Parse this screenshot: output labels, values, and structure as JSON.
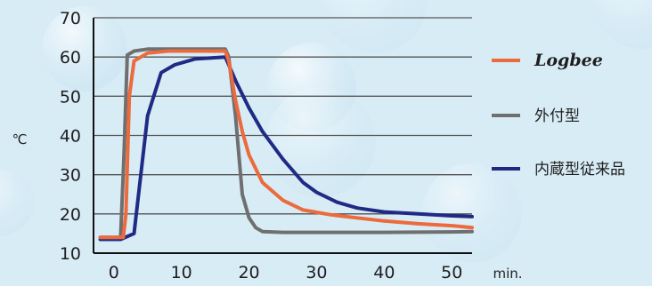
{
  "chart_data": {
    "type": "line",
    "ylabel": "℃",
    "xlabel": "min.",
    "xlim": [
      -3,
      53
    ],
    "ylim": [
      10,
      70
    ],
    "x_ticks": [
      "0",
      "10",
      "20",
      "30",
      "40",
      "50"
    ],
    "y_ticks": [
      "10",
      "20",
      "30",
      "40",
      "50",
      "60",
      "70"
    ],
    "grid": true,
    "legend_position": "right",
    "series": [
      {
        "name": "Logbee",
        "color": "#ec6a3c",
        "x": [
          -2,
          1.4,
          1.8,
          2.3,
          3,
          5,
          8,
          12,
          16.5,
          17,
          18,
          19,
          20,
          22,
          25,
          28,
          32,
          36,
          40,
          45,
          50,
          53
        ],
        "y": [
          14,
          14,
          20,
          50,
          59,
          61,
          61.5,
          61.5,
          61.5,
          59,
          49,
          41,
          35,
          28,
          23.5,
          21,
          19.8,
          19,
          18.2,
          17.5,
          17,
          16.5
        ]
      },
      {
        "name": "外付型",
        "color": "#6f6f6f",
        "x": [
          -2,
          1,
          1.5,
          2,
          3,
          5,
          10,
          16.5,
          17,
          18,
          19,
          20,
          21,
          22,
          25,
          30,
          40,
          50,
          53
        ],
        "y": [
          14,
          14,
          35,
          60.5,
          61.5,
          62,
          62,
          62,
          60,
          45,
          25,
          19,
          16.5,
          15.5,
          15.3,
          15.3,
          15.3,
          15.4,
          15.5
        ]
      },
      {
        "name": "内蔵型従来品",
        "color": "#1f2a85",
        "x": [
          -2,
          1,
          3,
          4,
          5,
          7,
          9,
          12,
          16.5,
          18,
          20,
          22,
          25,
          28,
          30,
          33,
          36,
          40,
          45,
          50,
          53
        ],
        "y": [
          13.5,
          13.5,
          15,
          30,
          45,
          56,
          58,
          59.5,
          60,
          54,
          47,
          41,
          34,
          28,
          25.5,
          23,
          21.5,
          20.5,
          20,
          19.5,
          19.3
        ]
      }
    ]
  }
}
